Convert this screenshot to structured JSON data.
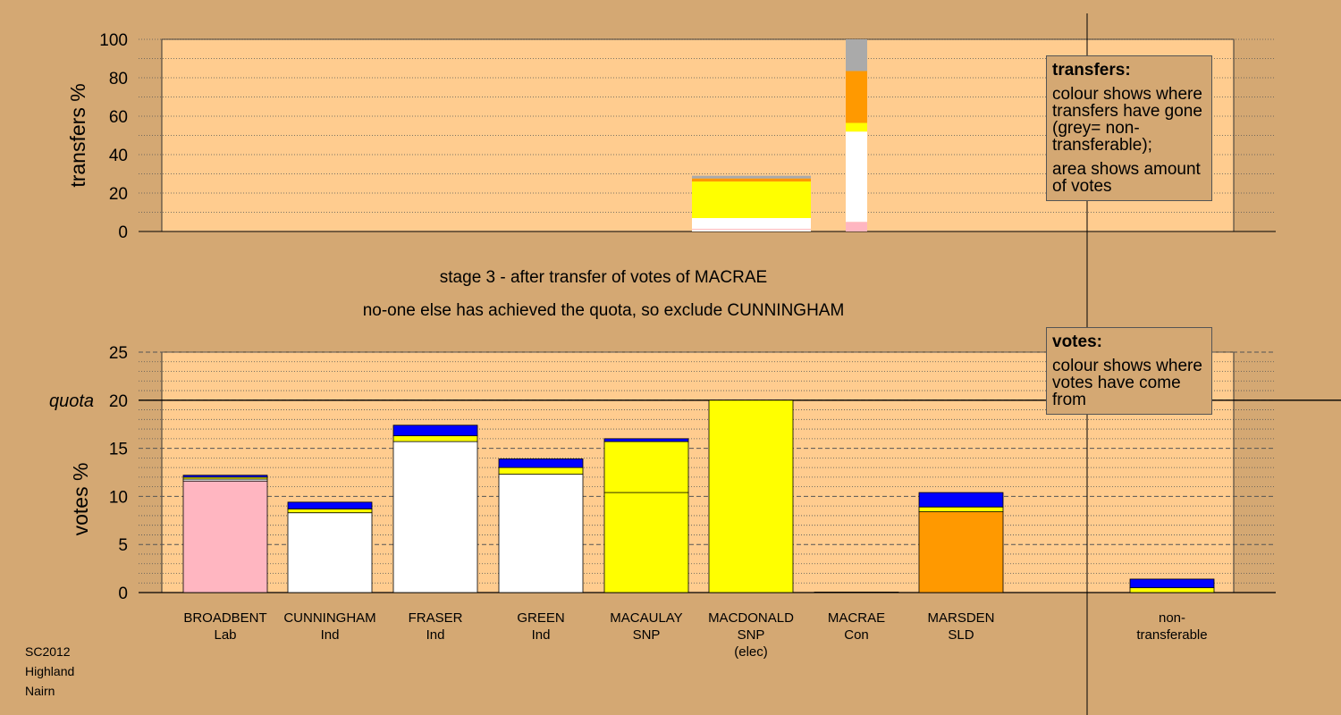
{
  "chart_data": [
    {
      "type": "bar",
      "stacked": true,
      "name": "transfers",
      "ylabel": "transfers %",
      "ylim": [
        0,
        100
      ],
      "yticks": [
        "0",
        "20",
        "40",
        "60",
        "80",
        "100"
      ],
      "grid": true,
      "bars": [
        {
          "candidate": "MACAULAY",
          "segments": [
            {
              "color": "#ffffff",
              "value": 1
            },
            {
              "color": "#ffb6c1",
              "value": 0.4
            },
            {
              "color": "#ffffff",
              "value": 5.6
            },
            {
              "color": "#ffff00",
              "value": 19
            },
            {
              "color": "#ff9900",
              "value": 1.6
            },
            {
              "color": "#aaaaaa",
              "value": 1.4
            }
          ]
        },
        {
          "candidate": "MACRAE",
          "segments": [
            {
              "color": "#ffb6c1",
              "value": 5
            },
            {
              "color": "#ffffff",
              "value": 47
            },
            {
              "color": "#ffff00",
              "value": 4.5
            },
            {
              "color": "#ff9900",
              "value": 27
            },
            {
              "color": "#aaaaaa",
              "value": 16.5
            }
          ]
        }
      ]
    },
    {
      "type": "bar",
      "stacked": true,
      "name": "votes",
      "ylabel": "votes %",
      "ylim": [
        0,
        25
      ],
      "yticks": [
        "0",
        "5",
        "10",
        "15",
        "20",
        "25"
      ],
      "quota": 20,
      "quota_label": "quota",
      "grid": true,
      "categories": [
        "BROADBENT",
        "CUNNINGHAM",
        "FRASER",
        "GREEN",
        "MACAULAY",
        "MACDONALD",
        "MACRAE",
        "MARSDEN",
        "non-transferable"
      ],
      "bars": [
        {
          "candidate": "BROADBENT",
          "segments": [
            {
              "color": "#ffb6c1",
              "value": 11.6
            },
            {
              "color": "#ffffff",
              "value": 0.2
            },
            {
              "color": "#ffff00",
              "value": 0.2
            },
            {
              "color": "#0000ff",
              "value": 0.2
            }
          ]
        },
        {
          "candidate": "CUNNINGHAM",
          "segments": [
            {
              "color": "#ffffff",
              "value": 8.3
            },
            {
              "color": "#ffff00",
              "value": 0.4
            },
            {
              "color": "#0000ff",
              "value": 0.7
            }
          ]
        },
        {
          "candidate": "FRASER",
          "segments": [
            {
              "color": "#ffffff",
              "value": 15.7
            },
            {
              "color": "#ffff00",
              "value": 0.6
            },
            {
              "color": "#0000ff",
              "value": 1.1
            }
          ]
        },
        {
          "candidate": "GREEN",
          "segments": [
            {
              "color": "#ffffff",
              "value": 12.3
            },
            {
              "color": "#ffff00",
              "value": 0.7
            },
            {
              "color": "#0000ff",
              "value": 0.9
            }
          ]
        },
        {
          "candidate": "MACAULAY",
          "segments": [
            {
              "color": "#ffff00",
              "value": 10.4
            },
            {
              "color": "#ffff00",
              "value": 5.3
            },
            {
              "color": "#0000ff",
              "value": 0.3
            }
          ]
        },
        {
          "candidate": "MACDONALD",
          "segments": [
            {
              "color": "#ffff00",
              "value": 20
            }
          ]
        },
        {
          "candidate": "MACRAE",
          "segments": [
            {
              "color": "#ff9900",
              "value": 0.05
            }
          ]
        },
        {
          "candidate": "MARSDEN",
          "segments": [
            {
              "color": "#ff9900",
              "value": 8.4
            },
            {
              "color": "#ffff00",
              "value": 0.5
            },
            {
              "color": "#0000ff",
              "value": 1.5
            }
          ]
        },
        {
          "candidate": "non-transferable",
          "segments": [
            {
              "color": "#ffff00",
              "value": 0.5
            },
            {
              "color": "#0000ff",
              "value": 0.9
            }
          ]
        }
      ]
    }
  ],
  "headings": {
    "stage": "stage 3 - after transfer of votes of MACRAE",
    "action": "no-one else has achieved the quota, so exclude CUNNINGHAM"
  },
  "legend_transfers": {
    "title": "transfers:",
    "line1": "colour shows where transfers have gone (grey= non-transferable);",
    "line2": "area shows amount of votes"
  },
  "legend_votes": {
    "title": "votes:",
    "line1": "colour shows where votes have come from"
  },
  "candidates": [
    {
      "name": "BROADBENT",
      "party": "Lab",
      "note": ""
    },
    {
      "name": "CUNNINGHAM",
      "party": "Ind",
      "note": ""
    },
    {
      "name": "FRASER",
      "party": "Ind",
      "note": ""
    },
    {
      "name": "GREEN",
      "party": "Ind",
      "note": ""
    },
    {
      "name": "MACAULAY",
      "party": "SNP",
      "note": ""
    },
    {
      "name": "MACDONALD",
      "party": "SNP",
      "note": "(elec)"
    },
    {
      "name": "MACRAE",
      "party": "Con",
      "note": ""
    },
    {
      "name": "MARSDEN",
      "party": "SLD",
      "note": ""
    },
    {
      "name": "non-",
      "party": "transferable",
      "note": ""
    }
  ],
  "footer": {
    "line1": "SC2012",
    "line2": "Highland",
    "line3": "Nairn"
  }
}
